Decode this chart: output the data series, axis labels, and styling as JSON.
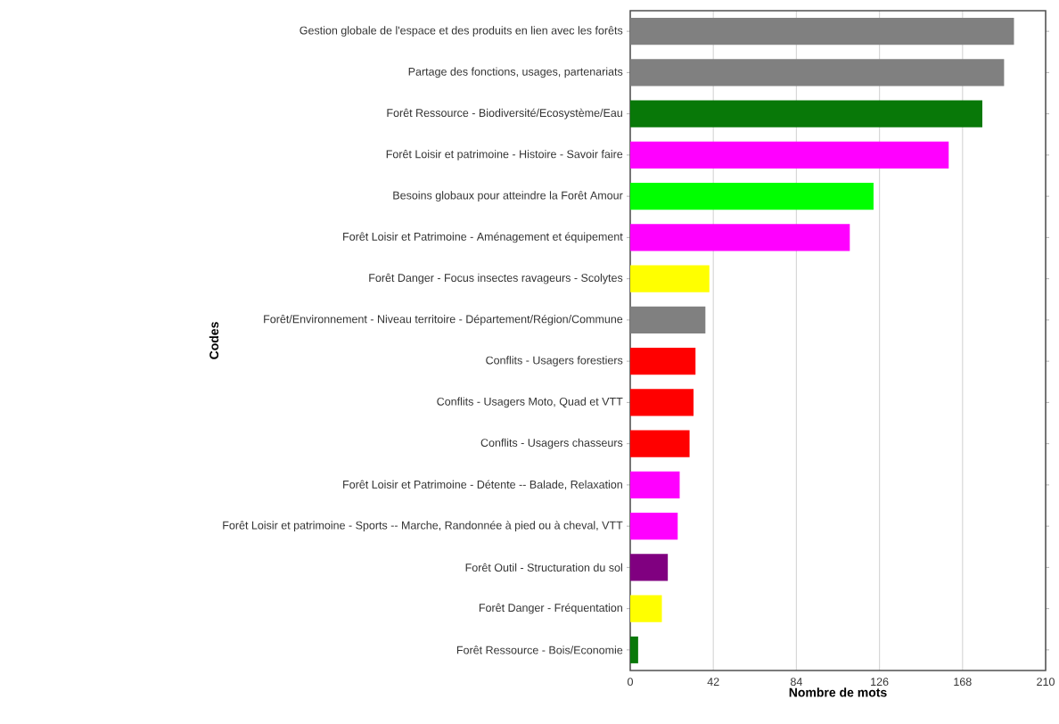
{
  "chart_data": {
    "type": "bar",
    "orientation": "horizontal",
    "xlabel": "Nombre de mots",
    "ylabel": "Codes",
    "categories": [
      "Gestion globale de l'espace et des produits en lien avec les forêts",
      "Partage des fonctions, usages, partenariats",
      "Forêt Ressource - Biodiversité/Ecosystème/Eau",
      "Forêt Loisir et patrimoine - Histoire - Savoir faire",
      "Besoins globaux pour atteindre la Forêt Amour",
      "Forêt Loisir et Patrimoine - Aménagement et équipement",
      "Forêt Danger - Focus insectes ravageurs - Scolytes",
      "Forêt/Environnement - Niveau territoire - Département/Région/Commune",
      "Conflits - Usagers forestiers",
      "Conflits - Usagers Moto, Quad et VTT",
      "Conflits - Usagers chasseurs",
      "Forêt Loisir et Patrimoine - Détente -- Balade, Relaxation",
      "Forêt Loisir et patrimoine - Sports -- Marche, Randonnée à pied ou à cheval, VTT",
      "Forêt Outil - Structuration du sol",
      "Forêt Danger - Fréquentation",
      "Forêt Ressource - Bois/Economie"
    ],
    "values": [
      194,
      189,
      178,
      161,
      123,
      111,
      40,
      38,
      33,
      32,
      30,
      25,
      24,
      19,
      16,
      4
    ],
    "colors": [
      "#808080",
      "#808080",
      "#087808",
      "#ff00ff",
      "#00ff00",
      "#ff00ff",
      "#ffff00",
      "#808080",
      "#ff0000",
      "#ff0000",
      "#ff0000",
      "#ff00ff",
      "#ff00ff",
      "#800080",
      "#ffff00",
      "#087808"
    ],
    "xlim": [
      0,
      210
    ],
    "xticks": [
      0,
      42,
      84,
      126,
      168,
      210
    ],
    "grid": "x"
  }
}
